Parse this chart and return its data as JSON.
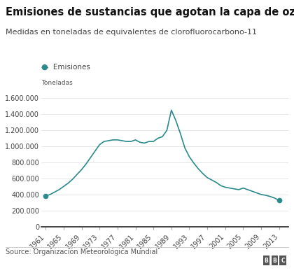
{
  "title": "Emisiones de sustancias que agotan la capa de ozono",
  "subtitle": "Medidas en toneladas de equivalentes de clorofluorocarbono-11",
  "ylabel_label": "Toneladas",
  "legend_label": "Emisiones",
  "source": "Source: Organización Meteorológica Mundial",
  "line_color": "#2a8a8c",
  "marker_color": "#2a8a8c",
  "background_color": "#ffffff",
  "years": [
    1961,
    1962,
    1963,
    1964,
    1965,
    1966,
    1967,
    1968,
    1969,
    1970,
    1971,
    1972,
    1973,
    1974,
    1975,
    1976,
    1977,
    1978,
    1979,
    1980,
    1981,
    1982,
    1983,
    1984,
    1985,
    1986,
    1987,
    1988,
    1989,
    1990,
    1991,
    1992,
    1993,
    1994,
    1995,
    1996,
    1997,
    1998,
    1999,
    2000,
    2001,
    2002,
    2003,
    2004,
    2005,
    2006,
    2007,
    2008,
    2009,
    2010,
    2011,
    2012,
    2013
  ],
  "values": [
    380000,
    400000,
    430000,
    460000,
    500000,
    540000,
    590000,
    650000,
    710000,
    780000,
    860000,
    940000,
    1020000,
    1060000,
    1070000,
    1080000,
    1080000,
    1070000,
    1060000,
    1060000,
    1080000,
    1050000,
    1040000,
    1060000,
    1060000,
    1100000,
    1120000,
    1200000,
    1450000,
    1320000,
    1160000,
    980000,
    870000,
    790000,
    720000,
    660000,
    610000,
    580000,
    550000,
    510000,
    490000,
    480000,
    470000,
    460000,
    480000,
    460000,
    440000,
    420000,
    400000,
    390000,
    375000,
    355000,
    325000
  ],
  "xtick_years": [
    1961,
    1965,
    1969,
    1973,
    1977,
    1981,
    1985,
    1989,
    1993,
    1997,
    2001,
    2005,
    2009,
    2013
  ],
  "yticks": [
    0,
    200000,
    400000,
    600000,
    800000,
    1000000,
    1200000,
    1400000,
    1600000
  ],
  "ylim": [
    0,
    1700000
  ],
  "xlim": [
    1960,
    2015
  ],
  "title_fontsize": 10.5,
  "subtitle_fontsize": 8,
  "tick_fontsize": 7,
  "legend_fontsize": 7.5,
  "source_fontsize": 7,
  "toneladas_fontsize": 6.5
}
